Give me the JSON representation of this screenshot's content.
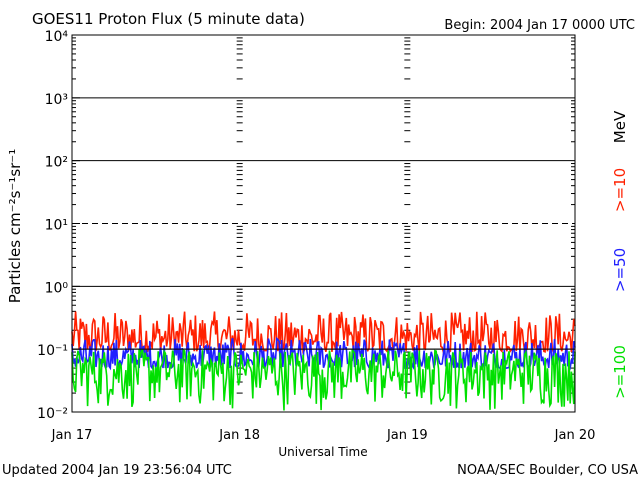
{
  "chart_data": {
    "type": "line",
    "title": "GOES11 Proton Flux (5 minute data)",
    "begin_text": "Begin: 2004 Jan 17 0000 UTC",
    "xlabel": "Universal Time",
    "ylabel": "Particles cm⁻²s⁻¹sr⁻¹",
    "y_scale": "log",
    "ylim": [
      0.01,
      10000
    ],
    "y_tick_labels": [
      "10⁻²",
      "10⁻¹",
      "10⁰",
      "10¹",
      "10²",
      "10³",
      "10⁴"
    ],
    "y_tick_values": [
      0.01,
      0.1,
      1,
      10,
      100,
      1000,
      10000
    ],
    "x_range_days": [
      0,
      3
    ],
    "x_tick_labels": [
      "Jan 17",
      "Jan 18",
      "Jan 19",
      "Jan 20"
    ],
    "x_tick_values": [
      0,
      1,
      2,
      3
    ],
    "threshold_lines": [
      {
        "value": 10,
        "style": "dashed"
      },
      {
        "value": 0.1,
        "style": "solid"
      }
    ],
    "series": [
      {
        "name": ">=10",
        "color": "#ff2000",
        "typical_range": [
          0.09,
          0.4
        ]
      },
      {
        "name": ">=50",
        "color": "#2020ff",
        "typical_range": [
          0.05,
          0.15
        ]
      },
      {
        "name": ">=100",
        "color": "#00e000",
        "typical_range": [
          0.01,
          0.1
        ]
      }
    ],
    "legend_unit": "MeV",
    "legend_placement": "right",
    "updated_text": "Updated 2004 Jan 19 23:56:04 UTC",
    "source_text": "NOAA/SEC Boulder, CO USA"
  }
}
